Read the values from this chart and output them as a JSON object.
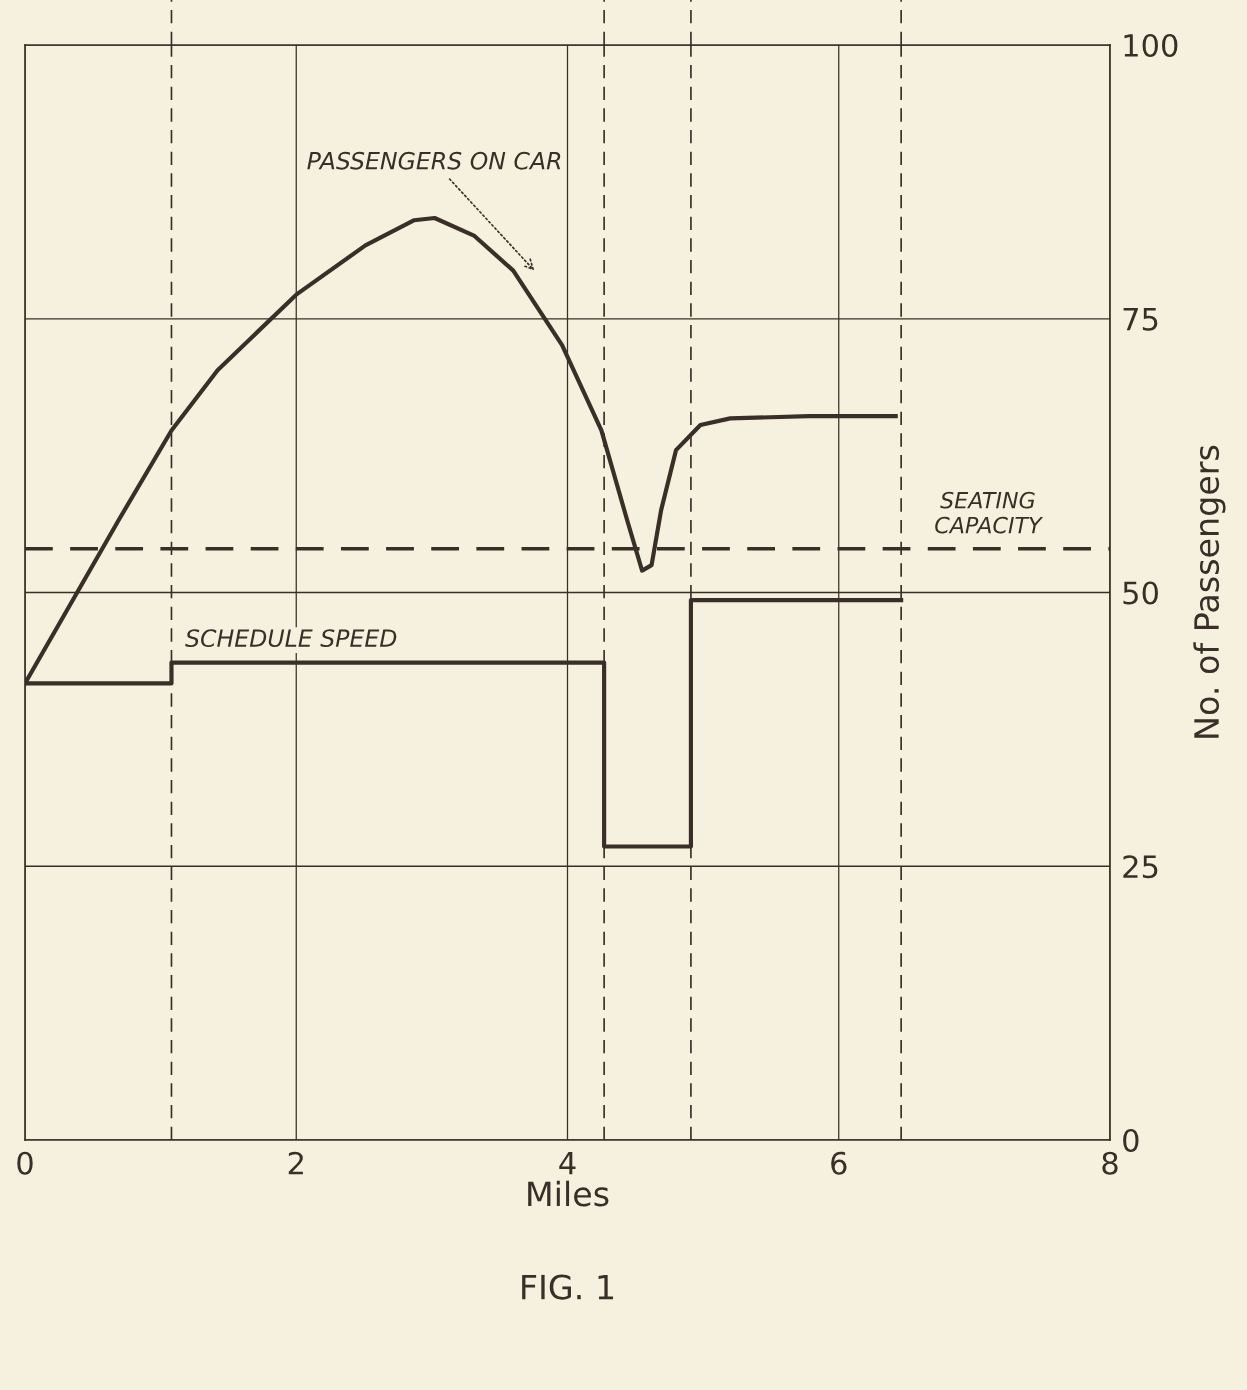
{
  "chart_data": {
    "type": "line",
    "xlabel": "Miles",
    "ylabel": "No. of Passengers",
    "annotations": [
      "FIG. 1"
    ],
    "series": [
      {
        "name": "PASSENGERS ON CAR",
        "color": "#3a2e28",
        "x": [
          0,
          0.69,
          1.08,
          1.42,
          2.0,
          2.51,
          2.87,
          3.02,
          3.31,
          3.6,
          3.96,
          4.25,
          4.44,
          4.55,
          4.62,
          4.69,
          4.8,
          4.98,
          5.2,
          5.78,
          6.42
        ],
        "values": [
          41.7,
          56.6,
          64.8,
          70.3,
          77.2,
          81.7,
          84.0,
          84.2,
          82.6,
          79.4,
          72.6,
          64.8,
          56.6,
          52.0,
          52.5,
          57.5,
          63.0,
          65.3,
          65.9,
          66.1,
          66.1
        ]
      },
      {
        "name": "SCHEDULE SPEED",
        "type": "step",
        "color": "#3a2e28",
        "x": [
          0,
          1.08,
          4.27,
          4.91,
          6.46
        ],
        "values": [
          41.7,
          43.6,
          26.8,
          49.3,
          49.3
        ]
      }
    ],
    "ref_lines": [
      {
        "axis": "y",
        "value": 54,
        "label": "SEATING\nCAPACITY",
        "line_style": "dashed",
        "color": "#3a2e28"
      },
      {
        "axis": "x",
        "value": 1.08,
        "label": null,
        "line_style": "dashed",
        "color": "#3a2e28"
      },
      {
        "axis": "x",
        "value": 4.27,
        "label": null,
        "line_style": "dashed",
        "color": "#3a2e28"
      },
      {
        "axis": "x",
        "value": 4.91,
        "label": null,
        "line_style": "dashed",
        "color": "#3a2e28"
      },
      {
        "axis": "x",
        "value": 6.46,
        "label": null,
        "line_style": "dashed",
        "color": "#3a2e28"
      }
    ],
    "xlim": [
      0,
      8
    ],
    "xticks": [
      0,
      2,
      4,
      6,
      8
    ],
    "ylim": [
      0,
      100
    ],
    "yticks": [
      0,
      25,
      50,
      75,
      100
    ],
    "grid": true,
    "legend": false,
    "marker": "none",
    "line_style": "solid"
  }
}
